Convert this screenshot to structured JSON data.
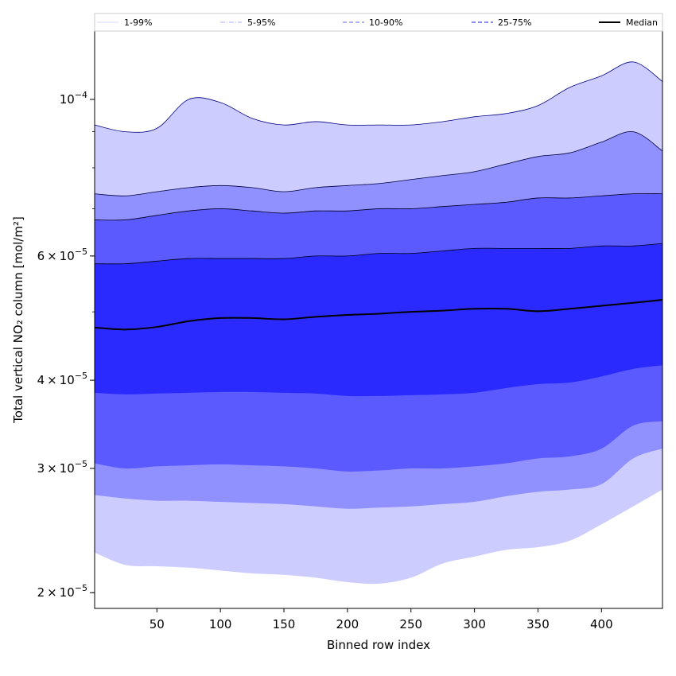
{
  "chart_data": {
    "type": "area",
    "xlabel": "Binned row index",
    "ylabel": "Total vertical NO₂ column [mol/m²]",
    "xlim": [
      1,
      448
    ],
    "ylim": [
      1.9e-05,
      0.000125
    ],
    "yscale": "log",
    "grid": false,
    "legend_placement": "top",
    "x_ticks": [
      50,
      100,
      150,
      200,
      250,
      300,
      350,
      400
    ],
    "y_ticks": [
      {
        "value": 2e-05,
        "mantissa": "2",
        "base": "10",
        "exp": "−5"
      },
      {
        "value": 3e-05,
        "mantissa": "3",
        "base": "10",
        "exp": "−5"
      },
      {
        "value": 4e-05,
        "mantissa": "4",
        "base": "10",
        "exp": "−5"
      },
      {
        "value": 6e-05,
        "mantissa": "6",
        "base": "10",
        "exp": "−5"
      },
      {
        "value": 0.0001,
        "mantissa": "",
        "base": "10",
        "exp": "−4"
      }
    ],
    "x": [
      1,
      25,
      50,
      75,
      100,
      125,
      150,
      175,
      200,
      225,
      250,
      275,
      300,
      325,
      350,
      375,
      400,
      425,
      448
    ],
    "bands": [
      {
        "name": "1-99%",
        "color": "#ccccff",
        "line_color": "#000080",
        "lower": [
          2.28e-05,
          2.19e-05,
          2.18e-05,
          2.17e-05,
          2.15e-05,
          2.13e-05,
          2.12e-05,
          2.1e-05,
          2.07e-05,
          2.06e-05,
          2.1e-05,
          2.2e-05,
          2.25e-05,
          2.3e-05,
          2.32e-05,
          2.37e-05,
          2.5e-05,
          2.65e-05,
          2.8e-05
        ],
        "upper": [
          9.2e-05,
          9e-05,
          9.1e-05,
          0.0001,
          9.9e-05,
          9.4e-05,
          9.2e-05,
          9.3e-05,
          9.2e-05,
          9.2e-05,
          9.2e-05,
          9.3e-05,
          9.45e-05,
          9.55e-05,
          9.8e-05,
          0.000104,
          0.000108,
          0.000113,
          0.000106
        ]
      },
      {
        "name": "5-95%",
        "color": "#9090ff",
        "line_color": "#000040",
        "lower": [
          2.75e-05,
          2.72e-05,
          2.7e-05,
          2.7e-05,
          2.69e-05,
          2.68e-05,
          2.67e-05,
          2.65e-05,
          2.63e-05,
          2.64e-05,
          2.65e-05,
          2.67e-05,
          2.69e-05,
          2.74e-05,
          2.78e-05,
          2.8e-05,
          2.85e-05,
          3.1e-05,
          3.2e-05
        ],
        "upper": [
          7.35e-05,
          7.3e-05,
          7.4e-05,
          7.5e-05,
          7.55e-05,
          7.5e-05,
          7.4e-05,
          7.5e-05,
          7.55e-05,
          7.6e-05,
          7.7e-05,
          7.8e-05,
          7.9e-05,
          8.1e-05,
          8.3e-05,
          8.4e-05,
          8.7e-05,
          9e-05,
          8.45e-05
        ]
      },
      {
        "name": "10-90%",
        "color": "#5a5aff",
        "line_color": "#000020",
        "lower": [
          3.05e-05,
          3e-05,
          3.02e-05,
          3.03e-05,
          3.04e-05,
          3.03e-05,
          3.02e-05,
          3e-05,
          2.97e-05,
          2.98e-05,
          3e-05,
          3e-05,
          3.02e-05,
          3.05e-05,
          3.1e-05,
          3.12e-05,
          3.2e-05,
          3.45e-05,
          3.5e-05
        ],
        "upper": [
          6.75e-05,
          6.75e-05,
          6.85e-05,
          6.95e-05,
          7e-05,
          6.95e-05,
          6.9e-05,
          6.95e-05,
          6.95e-05,
          7e-05,
          7e-05,
          7.05e-05,
          7.1e-05,
          7.15e-05,
          7.25e-05,
          7.25e-05,
          7.3e-05,
          7.35e-05,
          7.35e-05
        ]
      },
      {
        "name": "25-75%",
        "color": "#2a2aff",
        "line_color": "#000010",
        "lower": [
          3.84e-05,
          3.82e-05,
          3.83e-05,
          3.84e-05,
          3.85e-05,
          3.85e-05,
          3.84e-05,
          3.83e-05,
          3.8e-05,
          3.8e-05,
          3.81e-05,
          3.82e-05,
          3.84e-05,
          3.9e-05,
          3.95e-05,
          3.97e-05,
          4.05e-05,
          4.15e-05,
          4.2e-05
        ],
        "upper": [
          5.85e-05,
          5.85e-05,
          5.9e-05,
          5.95e-05,
          5.95e-05,
          5.95e-05,
          5.95e-05,
          6e-05,
          6e-05,
          6.05e-05,
          6.05e-05,
          6.1e-05,
          6.15e-05,
          6.15e-05,
          6.15e-05,
          6.15e-05,
          6.2e-05,
          6.2e-05,
          6.25e-05
        ]
      }
    ],
    "median": {
      "name": "Median",
      "color": "#000000",
      "values": [
        4.75e-05,
        4.72e-05,
        4.76e-05,
        4.85e-05,
        4.9e-05,
        4.9e-05,
        4.88e-05,
        4.92e-05,
        4.95e-05,
        4.97e-05,
        5e-05,
        5.02e-05,
        5.05e-05,
        5.05e-05,
        5.01e-05,
        5.05e-05,
        5.1e-05,
        5.15e-05,
        5.2e-05
      ]
    },
    "legend": [
      {
        "label": "1-99%",
        "style": "solid-thin",
        "color": "#ccccff"
      },
      {
        "label": "5-95%",
        "style": "dashdot-thin",
        "color": "#9090ff"
      },
      {
        "label": "10-90%",
        "style": "dashed",
        "color": "#8080ff"
      },
      {
        "label": "25-75%",
        "style": "dashed",
        "color": "#4040ff"
      },
      {
        "label": "Median",
        "style": "solid-thick",
        "color": "#000000"
      }
    ]
  }
}
